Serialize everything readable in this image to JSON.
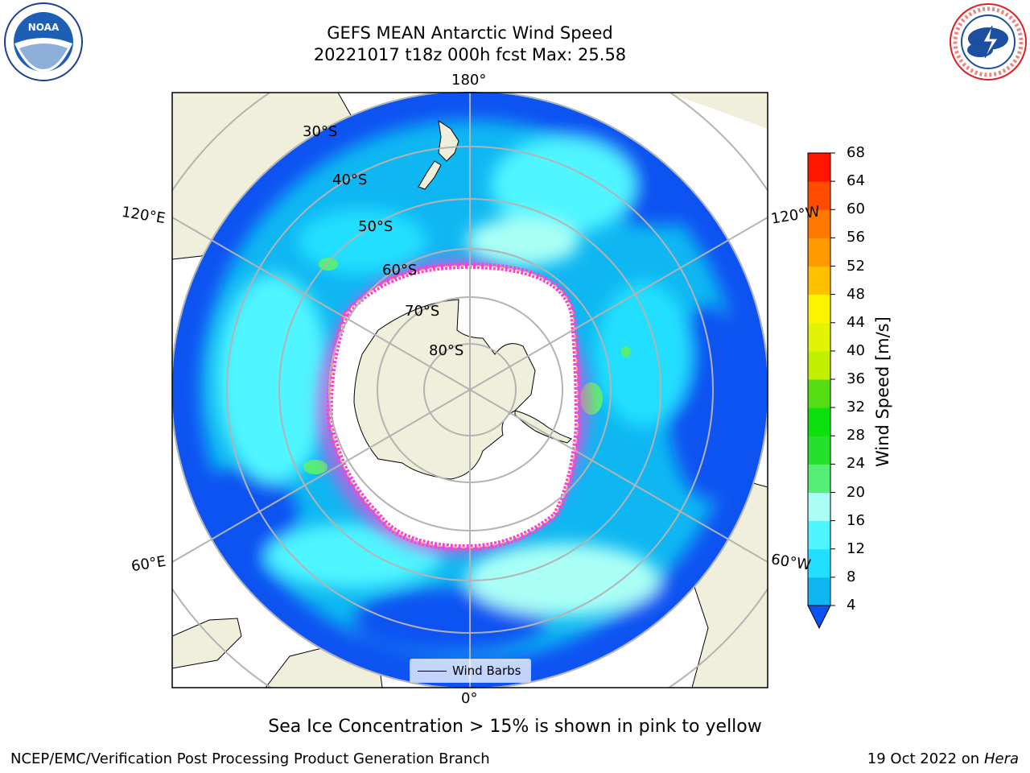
{
  "title": {
    "line1": "GEFS MEAN Antarctic Wind Speed",
    "line2": "20221017 t18z 000h fcst   Max: 25.58"
  },
  "logos": {
    "left": "noaa-logo",
    "right": "nws-logo"
  },
  "map": {
    "projection": "south-polar-stereographic",
    "lon_labels": {
      "top": "180°",
      "bottom": "0°",
      "upper_left": "120°E",
      "lower_left": "60°E",
      "upper_right": "120°W",
      "lower_right": "60°W"
    },
    "lat_labels": [
      "30°S",
      "40°S",
      "50°S",
      "60°S",
      "70°S",
      "80°S"
    ],
    "legend_label": "Wind Barbs"
  },
  "colorbar": {
    "label": "Wind Speed [m/s]",
    "ticks": [
      "4",
      "8",
      "12",
      "16",
      "20",
      "24",
      "28",
      "32",
      "36",
      "40",
      "44",
      "48",
      "52",
      "56",
      "60",
      "64",
      "68"
    ],
    "colors": [
      "#0d52f2",
      "#0fb7f2",
      "#22dfff",
      "#4ff5ff",
      "#a9fff5",
      "#55ef77",
      "#27e02c",
      "#09e00c",
      "#55dd14",
      "#c1ef04",
      "#e2f306",
      "#fff400",
      "#ffc000",
      "#ff9a00",
      "#ff7800",
      "#ff4d00",
      "#ff1500"
    ]
  },
  "footer": {
    "note": "Sea Ice Concentration > 15% is shown in pink to yellow",
    "left": "NCEP/EMC/Verification Post Processing Product Generation Branch",
    "right_date": "19 Oct 2022 on",
    "right_host": "Hera"
  }
}
